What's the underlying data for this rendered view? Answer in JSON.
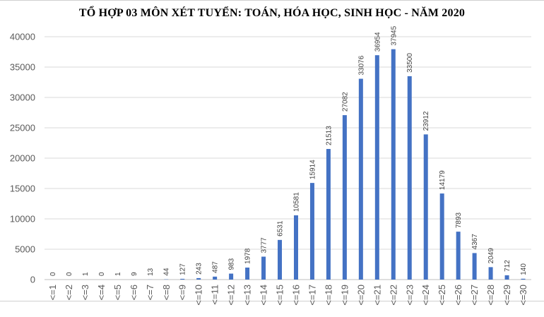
{
  "chart_data": {
    "type": "bar",
    "title": "TỔ HỢP 03 MÔN XÉT TUYỂN: TOÁN, HÓA HỌC, SINH HỌC - NĂM 2020",
    "xlabel": "",
    "ylabel": "",
    "ylim": [
      0,
      40000
    ],
    "yticks": [
      0,
      5000,
      10000,
      15000,
      20000,
      25000,
      30000,
      35000,
      40000
    ],
    "grid": true,
    "legend": "none",
    "bar_color": "#4472C4",
    "categories": [
      "<=1",
      "<=2",
      "<=3",
      "<=4",
      "<=5",
      "<=6",
      "<=7",
      "<=8",
      "<=9",
      "<=10",
      "<=11",
      "<=12",
      "<=13",
      "<=14",
      "<=15",
      "<=16",
      "<=17",
      "<=18",
      "<=19",
      "<=20",
      "<=21",
      "<=22",
      "<=23",
      "<=24",
      "<=25",
      "<=26",
      "<=27",
      "<=28",
      "<=29",
      "<=30"
    ],
    "values": [
      0,
      0,
      1,
      0,
      1,
      9,
      13,
      44,
      127,
      243,
      487,
      983,
      1978,
      3777,
      6531,
      10581,
      15914,
      21513,
      27082,
      33076,
      36954,
      37945,
      33500,
      23912,
      14179,
      7893,
      4367,
      2049,
      712,
      140
    ]
  }
}
